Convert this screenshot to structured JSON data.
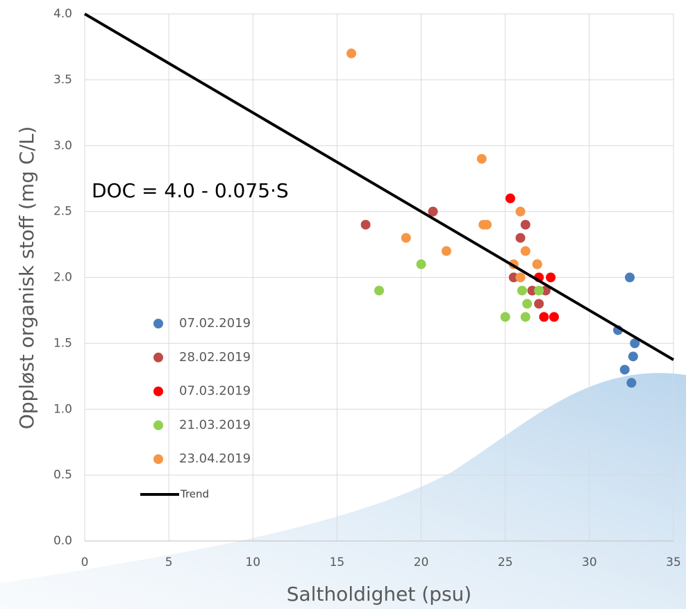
{
  "chart_data": {
    "type": "scatter",
    "annotation": "DOC = 4.0 - 0.075·S",
    "x_label": "Saltholdighet (psu)",
    "y_label": "Oppløst organisk stoff (mg C/L)",
    "xlim": [
      0,
      35
    ],
    "ylim": [
      0,
      4.0
    ],
    "xticks": [
      0,
      5,
      10,
      15,
      20,
      25,
      30,
      35
    ],
    "yticks": [
      {
        "value": 0,
        "label": "0.0"
      },
      {
        "value": 0.5,
        "label": "0.5"
      },
      {
        "value": 1,
        "label": "1.0"
      },
      {
        "value": 1.5,
        "label": "1.5"
      },
      {
        "value": 2,
        "label": "2.0"
      },
      {
        "value": 2.5,
        "label": "2.5"
      },
      {
        "value": 3,
        "label": "3.0"
      },
      {
        "value": 3.5,
        "label": "3.5"
      },
      {
        "value": 4,
        "label": "4.0"
      }
    ],
    "grid": true,
    "series": [
      {
        "name": "07.02.2019",
        "color": "#4a7ebb",
        "x": [
          32.4,
          31.7,
          32.7,
          32.6,
          32.1,
          32.5
        ],
        "values": [
          2.0,
          1.6,
          1.5,
          1.4,
          1.3,
          1.2
        ]
      },
      {
        "name": "28.02.2019",
        "color": "#be4b48",
        "x": [
          16.7,
          20.7,
          26.2,
          25.9,
          25.5,
          26.6,
          27.4,
          27.0,
          26.9
        ],
        "values": [
          2.4,
          2.5,
          2.4,
          2.3,
          2.0,
          1.9,
          1.9,
          1.8,
          2.1
        ]
      },
      {
        "name": "07.03.2019",
        "color": "#ff0000",
        "x": [
          25.3,
          27.0,
          27.7,
          27.3,
          27.9
        ],
        "values": [
          2.6,
          2.0,
          2.0,
          1.7,
          1.7
        ]
      },
      {
        "name": "21.03.2019",
        "color": "#92d050",
        "x": [
          17.5,
          20.0,
          25.0,
          26.0,
          26.3,
          26.2,
          27.0
        ],
        "values": [
          1.9,
          2.1,
          1.7,
          1.9,
          1.8,
          1.7,
          1.9
        ]
      },
      {
        "name": "23.04.2019",
        "color": "#f79646",
        "x": [
          15.85,
          23.6,
          19.1,
          21.5,
          23.7,
          23.9,
          25.9,
          26.2,
          25.5,
          25.9,
          26.9
        ],
        "values": [
          3.7,
          2.9,
          2.3,
          2.2,
          2.4,
          2.4,
          2.5,
          2.2,
          2.1,
          2.0,
          2.1
        ]
      }
    ],
    "trend": {
      "name": "Trend",
      "color": "#000000",
      "x": [
        0,
        35
      ],
      "values": [
        4.0,
        1.375
      ]
    }
  }
}
